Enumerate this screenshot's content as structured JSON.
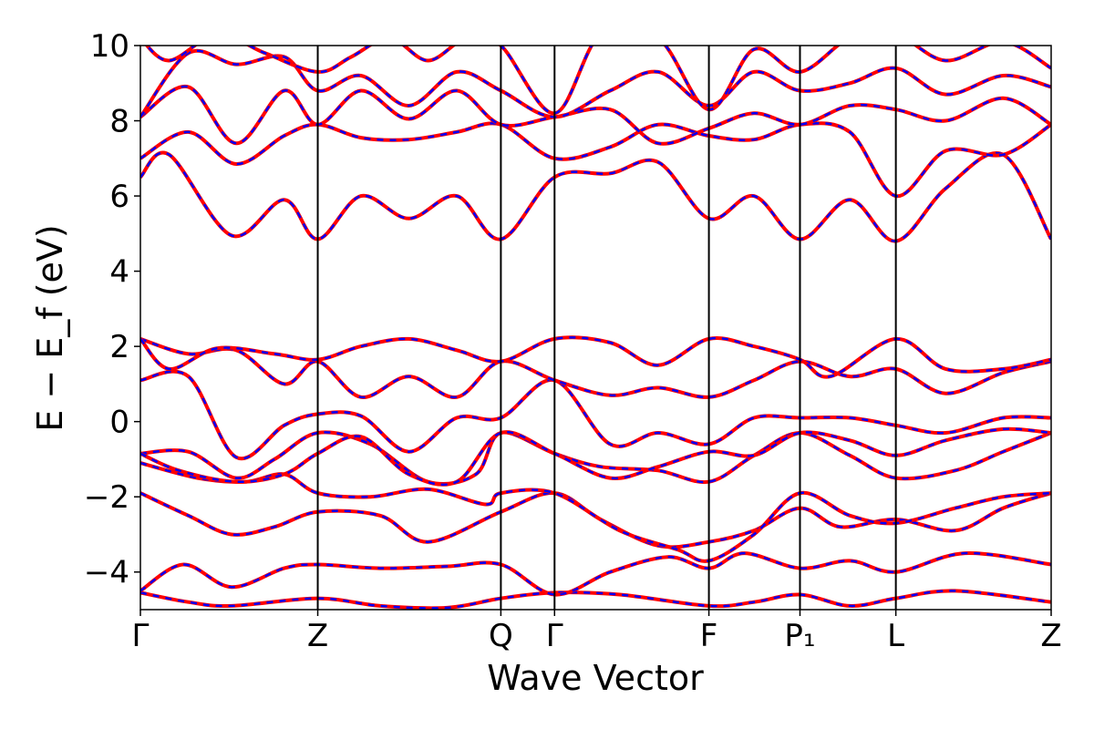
{
  "chart_data": {
    "type": "line",
    "title": "",
    "xlabel": "Wave Vector",
    "ylabel": "E − E_f (eV)",
    "ylim": [
      -5,
      10
    ],
    "xlim": [
      0,
      9.5
    ],
    "y_ticks": [
      -4,
      -2,
      0,
      2,
      4,
      6,
      8,
      10
    ],
    "y_tick_labels": [
      "−4",
      "−2",
      "0",
      "2",
      "4",
      "6",
      "8",
      "10"
    ],
    "k_points": [
      {
        "label": "Γ",
        "x": 0
      },
      {
        "label": "Z",
        "x": 1.85
      },
      {
        "label": "Q",
        "x": 3.76
      },
      {
        "label": "Γ",
        "x": 4.32
      },
      {
        "label": "F",
        "x": 5.93
      },
      {
        "label": "P₁",
        "x": 6.88
      },
      {
        "label": "L",
        "x": 7.88
      },
      {
        "label": "Z",
        "x": 9.5
      }
    ],
    "grid": false,
    "legend": "none",
    "colors": {
      "series_a": "#ff0000",
      "series_b": "#0000ff",
      "frame": "#000000"
    },
    "bands": [
      {
        "x": [
          0,
          0.5,
          0.95,
          1.85,
          2.5,
          3.2,
          3.76,
          4.32,
          5.0,
          5.93,
          6.4,
          6.88,
          7.4,
          7.88,
          8.5,
          9.5
        ],
        "y": [
          -4.55,
          -4.8,
          -4.9,
          -4.7,
          -4.9,
          -4.95,
          -4.7,
          -4.55,
          -4.6,
          -4.9,
          -4.8,
          -4.6,
          -4.9,
          -4.7,
          -4.5,
          -4.8
        ]
      },
      {
        "x": [
          0,
          0.45,
          0.95,
          1.5,
          1.85,
          2.5,
          3.2,
          3.76,
          4.32,
          4.9,
          5.5,
          5.93,
          6.3,
          6.88,
          7.4,
          7.88,
          8.6,
          9.5
        ],
        "y": [
          -4.5,
          -3.8,
          -4.4,
          -3.9,
          -3.8,
          -3.9,
          -3.85,
          -3.8,
          -4.6,
          -4.0,
          -3.6,
          -3.9,
          -3.5,
          -3.9,
          -3.7,
          -4.0,
          -3.5,
          -3.8
        ]
      },
      {
        "x": [
          0,
          0.5,
          0.95,
          1.4,
          1.85,
          2.5,
          3.0,
          3.76,
          4.32,
          4.8,
          5.4,
          5.93,
          6.4,
          6.88,
          7.3,
          7.88,
          8.5,
          9.0,
          9.5
        ],
        "y": [
          -1.9,
          -2.5,
          -3.0,
          -2.8,
          -2.4,
          -2.5,
          -3.2,
          -2.4,
          -1.9,
          -2.6,
          -3.3,
          -3.2,
          -2.9,
          -2.3,
          -2.8,
          -2.6,
          -2.9,
          -2.3,
          -1.9
        ]
      },
      {
        "x": [
          0,
          0.6,
          1.1,
          1.5,
          1.85,
          2.4,
          3.0,
          3.6,
          3.76,
          4.32,
          5.0,
          5.6,
          5.93,
          6.4,
          6.88,
          7.4,
          7.88,
          8.5,
          9.0,
          9.5
        ],
        "y": [
          -1.1,
          -1.5,
          -1.6,
          -1.4,
          -1.9,
          -2.0,
          -1.8,
          -2.2,
          -1.9,
          -1.9,
          -2.9,
          -3.4,
          -3.7,
          -3.0,
          -1.9,
          -2.5,
          -2.7,
          -2.3,
          -2.0,
          -1.9
        ]
      },
      {
        "x": [
          0,
          0.5,
          1.0,
          1.4,
          1.85,
          2.4,
          3.0,
          3.5,
          3.76,
          4.32,
          4.8,
          5.4,
          5.93,
          6.4,
          6.88,
          7.4,
          7.88,
          8.5,
          9.0,
          9.5
        ],
        "y": [
          -0.85,
          -0.8,
          -1.5,
          -1.0,
          -0.3,
          -0.6,
          -1.6,
          -1.4,
          -0.3,
          -0.85,
          -1.2,
          -1.3,
          -1.6,
          -0.9,
          -0.3,
          -0.9,
          -1.5,
          -1.3,
          -0.8,
          -0.3
        ]
      },
      {
        "x": [
          0,
          0.4,
          1.0,
          1.5,
          1.85,
          2.3,
          2.8,
          3.3,
          3.76,
          4.32,
          4.9,
          5.4,
          5.93,
          6.4,
          6.88,
          7.4,
          7.88,
          8.4,
          9.0,
          9.5
        ],
        "y": [
          -0.85,
          -1.3,
          -1.6,
          -1.4,
          -0.85,
          -0.4,
          -1.4,
          -1.6,
          -0.3,
          -0.85,
          -1.5,
          -1.2,
          -0.8,
          -0.9,
          -0.3,
          -0.5,
          -0.9,
          -0.5,
          -0.2,
          -0.3
        ]
      },
      {
        "x": [
          0,
          0.5,
          1.0,
          1.5,
          1.85,
          2.3,
          2.8,
          3.3,
          3.76,
          4.32,
          4.9,
          5.4,
          5.93,
          6.4,
          6.88,
          7.4,
          7.88,
          8.4,
          9.0,
          9.5
        ],
        "y": [
          1.1,
          1.2,
          -0.95,
          -0.1,
          0.2,
          0.15,
          -0.8,
          0.1,
          0.1,
          1.1,
          -0.6,
          -0.3,
          -0.6,
          0.1,
          0.1,
          0.1,
          -0.1,
          -0.3,
          0.1,
          0.1
        ]
      },
      {
        "x": [
          0,
          0.5,
          1.0,
          1.5,
          1.85,
          2.3,
          2.8,
          3.3,
          3.76,
          4.32,
          4.9,
          5.4,
          5.93,
          6.4,
          6.88,
          7.4,
          7.88,
          8.4,
          9.0,
          9.5
        ],
        "y": [
          2.2,
          1.8,
          1.9,
          1.0,
          1.6,
          0.65,
          1.2,
          0.65,
          1.6,
          1.1,
          0.7,
          0.9,
          0.65,
          1.1,
          1.6,
          1.2,
          1.4,
          0.75,
          1.3,
          1.6
        ]
      },
      {
        "x": [
          0,
          0.3,
          0.8,
          1.4,
          1.85,
          2.3,
          2.8,
          3.3,
          3.76,
          4.32,
          4.9,
          5.4,
          5.93,
          6.4,
          6.88,
          7.2,
          7.88,
          8.4,
          9.0,
          9.5
        ],
        "y": [
          2.2,
          1.4,
          1.95,
          1.8,
          1.65,
          2.0,
          2.2,
          1.9,
          1.6,
          2.2,
          2.1,
          1.5,
          2.2,
          2.0,
          1.65,
          1.2,
          2.2,
          1.4,
          1.4,
          1.65
        ]
      },
      {
        "x": [
          0,
          0.3,
          0.95,
          1.5,
          1.85,
          2.3,
          2.8,
          3.3,
          3.76,
          4.32,
          4.9,
          5.4,
          5.93,
          6.4,
          6.88,
          7.4,
          7.88,
          8.4,
          9.0,
          9.5
        ],
        "y": [
          6.5,
          7.1,
          4.95,
          5.9,
          4.85,
          6.0,
          5.4,
          6.0,
          4.85,
          6.5,
          6.6,
          6.9,
          5.4,
          6.0,
          4.85,
          5.9,
          4.8,
          6.2,
          7.1,
          4.85
        ]
      },
      {
        "x": [
          0,
          0.5,
          1.0,
          1.5,
          1.85,
          2.3,
          2.8,
          3.3,
          3.76,
          4.32,
          4.9,
          5.4,
          5.93,
          6.4,
          6.88,
          7.4,
          7.88,
          8.4,
          9.0,
          9.5
        ],
        "y": [
          7.0,
          7.7,
          6.85,
          7.6,
          7.9,
          7.55,
          7.5,
          7.7,
          7.9,
          7.0,
          7.3,
          7.9,
          7.6,
          7.5,
          7.9,
          7.7,
          6.0,
          7.2,
          7.1,
          7.9
        ]
      },
      {
        "x": [
          0,
          0.5,
          1.0,
          1.5,
          1.85,
          2.3,
          2.8,
          3.3,
          3.76,
          4.32,
          4.9,
          5.4,
          5.93,
          6.4,
          6.88,
          7.4,
          7.88,
          8.4,
          9.0,
          9.5
        ],
        "y": [
          8.1,
          8.9,
          7.4,
          8.8,
          7.9,
          8.8,
          8.05,
          8.8,
          7.9,
          8.1,
          8.3,
          7.4,
          7.8,
          8.2,
          7.9,
          8.4,
          8.3,
          8.0,
          8.6,
          7.9
        ]
      },
      {
        "x": [
          0,
          0.5,
          1.0,
          1.5,
          1.85,
          2.3,
          2.8,
          3.3,
          3.76,
          4.32,
          4.9,
          5.4,
          5.93,
          6.4,
          6.88,
          7.4,
          7.88,
          8.4,
          9.0,
          9.5
        ],
        "y": [
          8.1,
          9.8,
          9.5,
          9.7,
          8.8,
          9.2,
          8.4,
          9.3,
          8.8,
          8.1,
          8.8,
          9.3,
          8.4,
          9.3,
          8.8,
          9.0,
          9.4,
          8.7,
          9.2,
          8.9
        ]
      },
      {
        "x": [
          0,
          0.3,
          0.8,
          1.3,
          1.85,
          2.2,
          2.6,
          3.0,
          3.4,
          3.76,
          4.32,
          4.8,
          5.4,
          5.93,
          6.4,
          6.88,
          7.4,
          7.88,
          8.4,
          9.0,
          9.5
        ],
        "y": [
          10.2,
          9.6,
          10.3,
          9.8,
          9.3,
          9.7,
          10.2,
          9.6,
          10.2,
          10.0,
          8.2,
          10.3,
          10.2,
          8.3,
          9.9,
          9.3,
          10.2,
          10.3,
          9.6,
          10.1,
          9.4
        ]
      }
    ]
  }
}
